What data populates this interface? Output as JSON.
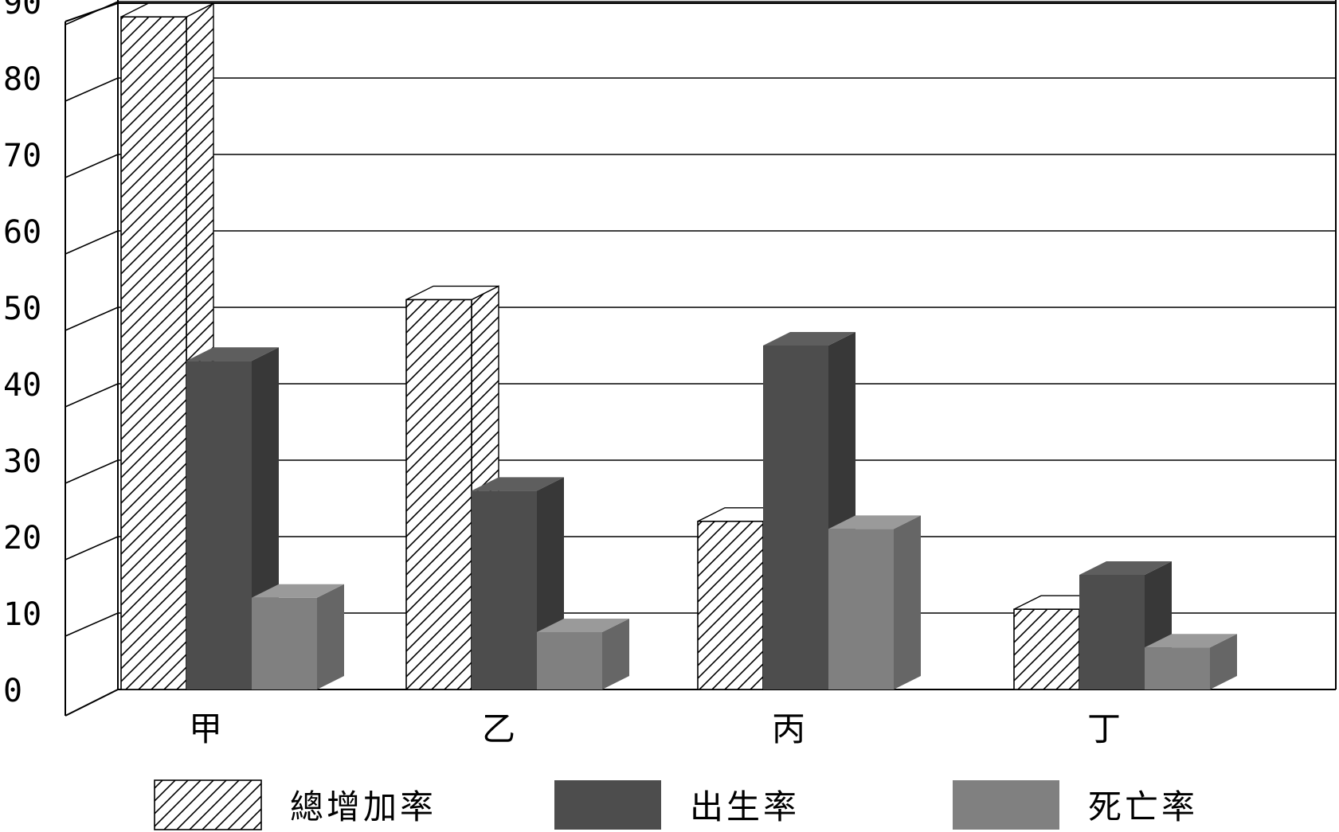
{
  "chart_data": {
    "type": "bar",
    "title": "",
    "xlabel": "",
    "ylabel": "",
    "categories": [
      "甲",
      "乙",
      "丙",
      "丁"
    ],
    "ylim": [
      0,
      90
    ],
    "yticks": [
      "0",
      "10",
      "20",
      "30",
      "40",
      "50",
      "60",
      "70",
      "80",
      "90"
    ],
    "grid": true,
    "legend_position": "bottom",
    "series": [
      {
        "name": "總增加率",
        "values": [
          88,
          51,
          22,
          10.5
        ],
        "fill": "hatch",
        "color": "#ffffff"
      },
      {
        "name": "出生率",
        "values": [
          43,
          26,
          45,
          15
        ],
        "fill": "solid",
        "color": "#4d4d4d"
      },
      {
        "name": "死亡率",
        "values": [
          12,
          7.5,
          21,
          5.5
        ],
        "fill": "solid",
        "color": "#808080"
      }
    ]
  }
}
